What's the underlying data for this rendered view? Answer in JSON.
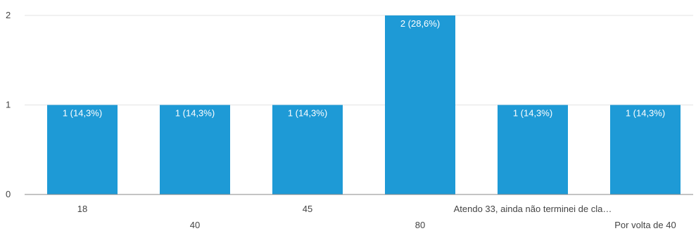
{
  "chart_data": {
    "type": "bar",
    "title": "",
    "xlabel": "",
    "ylabel": "",
    "ylim": [
      0,
      2
    ],
    "yticks": [
      0,
      1,
      2
    ],
    "grid": true,
    "bar_color": "#1e9ad6",
    "categories": [
      "18",
      "40",
      "45",
      "80",
      "Atendo 33, ainda não terminei de cla…",
      "Por volta de 40"
    ],
    "values": [
      1,
      1,
      1,
      2,
      1,
      1
    ],
    "data_labels": [
      "1 (14,3%)",
      "1 (14,3%)",
      "1 (14,3%)",
      "2 (28,6%)",
      "1 (14,3%)",
      "1 (14,3%)"
    ]
  }
}
